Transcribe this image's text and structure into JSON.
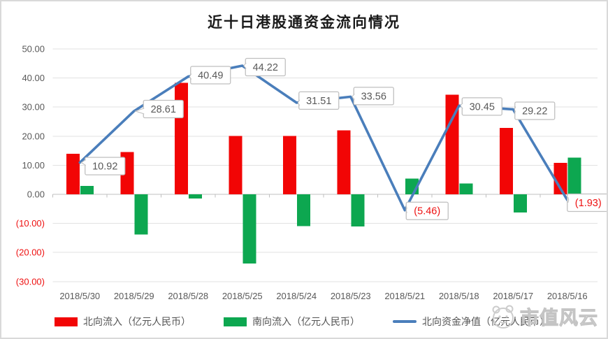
{
  "title": "近十日港股通资金流向情况",
  "watermark": {
    "text": "市值风云",
    "logo": "mascot-face-logo"
  },
  "legend": [
    {
      "label": "北向流入（亿元人民币）",
      "swatch": "bar",
      "color": "#F20505"
    },
    {
      "label": "南向流入（亿元人民币）",
      "swatch": "bar",
      "color": "#0DA750"
    },
    {
      "label": "北向资金净值（亿元人民币）",
      "swatch": "line",
      "color": "#4A7EBB"
    }
  ],
  "chart_data": {
    "type": "combo-bar-line",
    "title": "近十日港股通资金流向情况",
    "categories": [
      "2018/5/30",
      "2018/5/29",
      "2018/5/28",
      "2018/5/25",
      "2018/5/24",
      "2018/5/23",
      "2018/5/21",
      "2018/5/18",
      "2018/5/17",
      "2018/5/16"
    ],
    "series": [
      {
        "name": "北向流入（亿元人民币）",
        "type": "bar",
        "color": "#F20505",
        "values": [
          14.0,
          14.6,
          38.4,
          20.1,
          20.1,
          22.0,
          0,
          34.3,
          22.8,
          10.8
        ]
      },
      {
        "name": "南向流入（亿元人民币）",
        "type": "bar",
        "color": "#0DA750",
        "values": [
          2.9,
          -13.8,
          -1.4,
          -23.8,
          -10.9,
          -11.1,
          5.4,
          3.7,
          -6.2,
          12.6
        ]
      },
      {
        "name": "北向资金净值（亿元人民币）",
        "type": "line",
        "color": "#4A7EBB",
        "values": [
          10.92,
          28.61,
          40.49,
          44.22,
          31.51,
          33.56,
          -5.46,
          30.45,
          29.22,
          -1.93
        ],
        "data_labels": [
          "10.92",
          "28.61",
          "40.49",
          "44.22",
          "31.51",
          "33.56",
          "(5.46)",
          "30.45",
          "29.22",
          "(1.93)"
        ]
      }
    ],
    "y_axis": {
      "min": -30,
      "max": 50,
      "step": 10,
      "tick_labels": [
        "50.00",
        "40.00",
        "30.00",
        "20.00",
        "10.00",
        "0.00",
        "(10.00)",
        "(20.00)",
        "(30.00)"
      ]
    },
    "grid": true,
    "legend_position": "bottom",
    "axis_text_color": "#595959",
    "negative_text_color": "#EE1111",
    "grid_color": "#E2E2E2",
    "axis_line_color": "#BFBFBF",
    "label_box_border": "#BFBFBF"
  }
}
